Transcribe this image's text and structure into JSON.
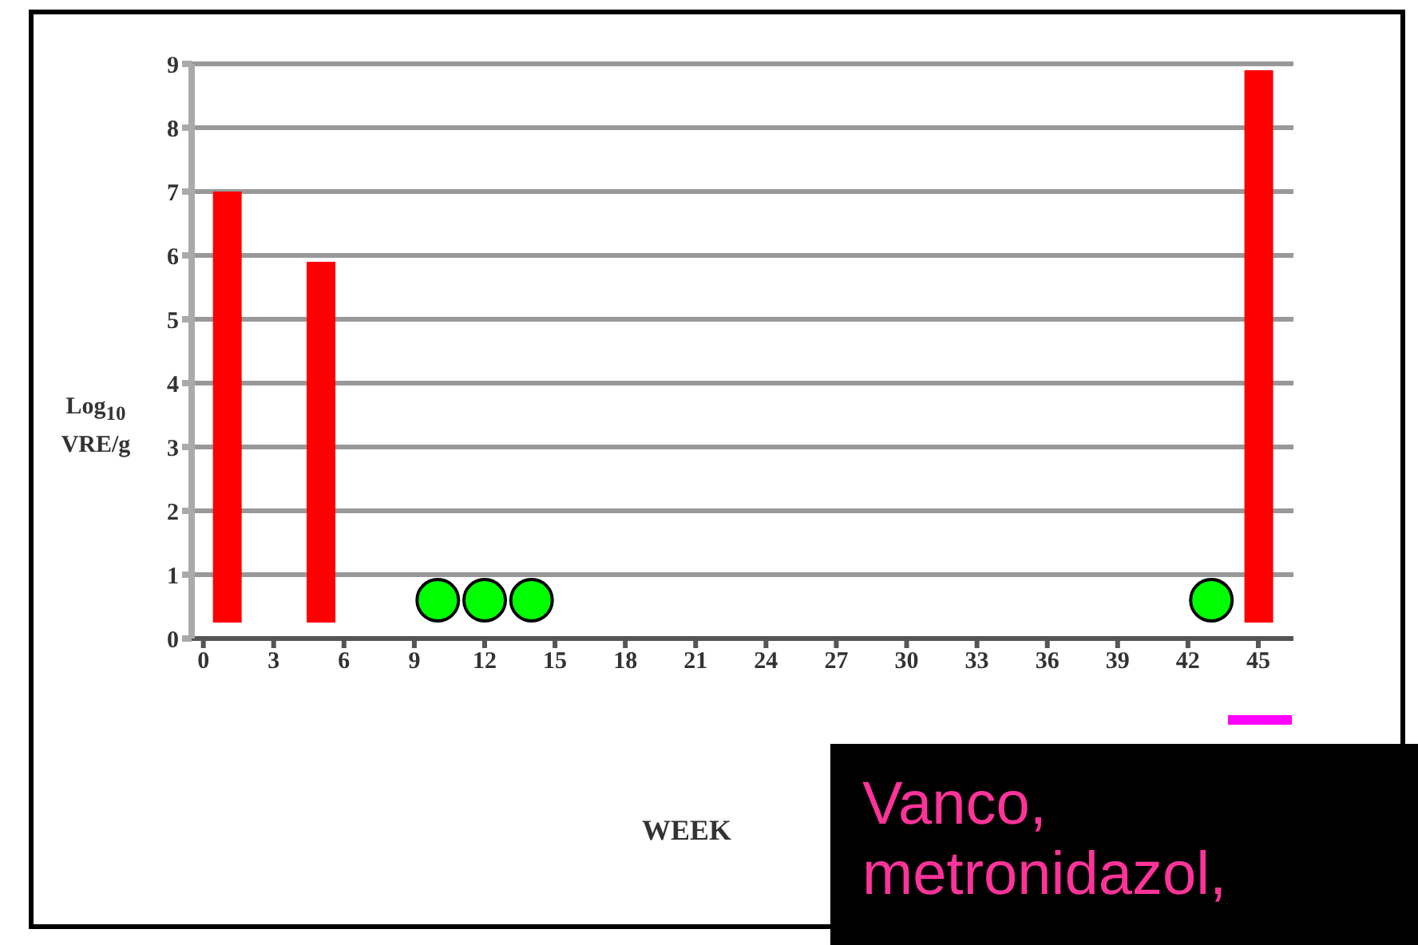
{
  "chart_data": {
    "type": "bar",
    "xlabel": "WEEK",
    "ylabel": "Log$_{10}$\nVRE/g",
    "xlim": [
      -0.5,
      46.5
    ],
    "xticks": [
      0,
      3,
      6,
      9,
      12,
      15,
      18,
      21,
      24,
      27,
      30,
      33,
      36,
      39,
      42,
      45
    ],
    "ylim": [
      0,
      9
    ],
    "yticks": [
      0,
      1,
      2,
      3,
      4,
      5,
      6,
      7,
      8,
      9
    ],
    "grid": "y",
    "series": [
      {
        "x": [
          1,
          5,
          45
        ],
        "base": [
          0.25,
          0.25,
          0.25
        ],
        "values": [
          6.75,
          5.65,
          8.65
        ],
        "color": "#ff0000"
      },
      {
        "type": "scatter",
        "x": [
          10,
          12,
          14,
          43
        ],
        "values": [
          0.6,
          0.6,
          0.6,
          0.6
        ],
        "color": "#00ff00",
        "marker": "circle"
      }
    ],
    "annotations": [
      "Vanco,\nmetronidazol,"
    ]
  }
}
